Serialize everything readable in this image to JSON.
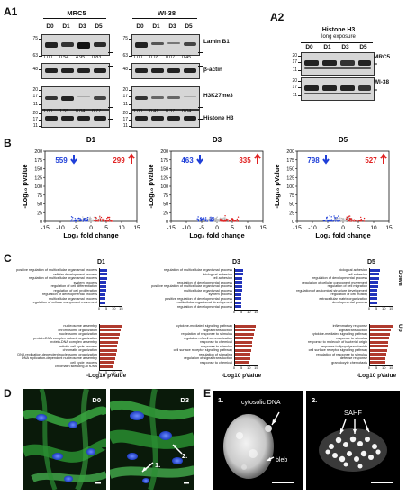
{
  "panels": {
    "a1": "A1",
    "a2": "A2",
    "b": "B",
    "c": "C",
    "d": "D",
    "e": "E"
  },
  "blots": {
    "mrc5_title": "MRC5",
    "wi38_title": "WI-38",
    "lanes": [
      "D0",
      "D1",
      "D3",
      "D5"
    ],
    "mrc5_lamin_quant": [
      "1.00",
      "0.54",
      "4.95",
      "0.83"
    ],
    "wi38_lamin_quant": [
      "1.00",
      "0.18",
      "0.07",
      "0.45"
    ],
    "mrc5_h3k_quant": [
      "1.00",
      "1.55",
      "0.04",
      "0.77"
    ],
    "wi38_h3k_quant": [
      "1.00",
      "0.41",
      "0.37",
      "0.04"
    ],
    "targets": {
      "lamin": "Lamin B1",
      "actin": "β-actin",
      "h3k": "H3K27me3",
      "h3": "Histone H3"
    },
    "mw_top": [
      "75",
      "63",
      "48"
    ],
    "mw_bottom": [
      "20",
      "17",
      "11",
      "20",
      "17",
      "11"
    ],
    "a2_title_line1": "Histone H3",
    "a2_title_line2": "long exposure",
    "a2_mrc5": "MRC5",
    "a2_wi38": "WI-38",
    "a2_mw": [
      "20",
      "17",
      "11",
      "20",
      "17",
      "11"
    ],
    "star": "**"
  },
  "volcano": {
    "titles": [
      "D1",
      "D3",
      "D5"
    ],
    "down_counts": [
      "559",
      "463",
      "798"
    ],
    "up_counts": [
      "299",
      "335",
      "527"
    ],
    "xlabel": "Log₂ fold change",
    "ylabel": "-Log₁₀ pValue",
    "xticks": [
      "-15",
      "-10",
      "-5",
      "0",
      "5",
      "10",
      "15"
    ],
    "yticks": [
      "0",
      "25",
      "50",
      "75",
      "100",
      "125",
      "150",
      "175",
      "200"
    ],
    "colors": {
      "down": "#1f3fd8",
      "up": "#e02020",
      "ns": "#bbbbbb"
    }
  },
  "go": {
    "titles": [
      "D1",
      "D3",
      "D5"
    ],
    "down_label": "Down",
    "up_label": "Up",
    "xlabel": "-Log10 pValue",
    "xticks": [
      "0",
      "5",
      "10",
      "15"
    ],
    "d1_down": [
      "positive regulation of multicellular organismal process",
      "cellular development process",
      "regulation of multicellular organismal process",
      "system process",
      "regulation of cell differentiation",
      "regulation of cell proliferation",
      "regulation of developmental process",
      "multicellular organismal process",
      "regulation of cellular component movement"
    ],
    "d1_up": [
      "nucleosome assembly",
      "chromosome organization",
      "nucleosome organization",
      "protein-DNA complex subunit organization",
      "protein-DNA complex assembly",
      "mitotic cell cycle process",
      "chromatin organization",
      "DNA replication-dependent nucleosome organization",
      "DNA replication-dependent nucleosome assembly",
      "cell cycle process",
      "chromatin silencing at rDNA"
    ],
    "d3_down": [
      "regulation of multicellular organismal process",
      "biological adhesion",
      "cell adhesion",
      "regulation of developmental process",
      "positive regulation of multicellular organismal process",
      "multicellular organismal process",
      "system process",
      "positive regulation of developmental process",
      "multicellular organismal development",
      "regulation of developmental process"
    ],
    "d3_up": [
      "cytokine-mediated signaling pathway",
      "signal transduction",
      "regulation of response to stimulus",
      "regulation of cell communication",
      "response to chemical",
      "response to stimulus",
      "cell surface receptor signaling pathway",
      "regulation of signaling",
      "regulation of signal transduction",
      "response to chemical"
    ],
    "d5_down": [
      "biological adhesion",
      "cell adhesion",
      "regulation of developmental process",
      "regulation of cellular component movement",
      "regulation of cell migration",
      "regulation of anatomical structure development",
      "regulation of cell motility",
      "extracellular matrix organization",
      "developmental process"
    ],
    "d5_up": [
      "inflammatory response",
      "signal transduction",
      "cytokine-mediated signaling pathway",
      "response to stimulus",
      "response to molecule of bacterial origin",
      "response to lipopolysaccharide",
      "cell surface receptor signaling pathway",
      "regulation of response to stimulus",
      "defense response",
      "granulocyte chemotaxis"
    ],
    "d1_down_vals": [
      5.8,
      5.5,
      5.2,
      5.0,
      4.8,
      4.6,
      4.5,
      4.4,
      4.2
    ],
    "d1_up_vals": [
      15.5,
      14.8,
      14.2,
      13.6,
      13.0,
      12.4,
      12.0,
      11.4,
      11.0,
      10.6,
      10.0
    ],
    "d3_down_vals": [
      6.2,
      6.0,
      5.8,
      5.6,
      5.4,
      5.2,
      5.1,
      5.0,
      4.9,
      4.8
    ],
    "d3_up_vals": [
      14.8,
      14.2,
      13.6,
      13.0,
      12.5,
      12.0,
      11.6,
      11.2,
      10.8,
      10.4
    ],
    "d5_down_vals": [
      7.2,
      6.8,
      6.5,
      6.2,
      6.0,
      5.8,
      5.6,
      5.4,
      5.2
    ],
    "d5_up_vals": [
      15.8,
      15.0,
      14.3,
      13.7,
      13.2,
      12.6,
      12.1,
      11.6,
      11.2,
      10.8
    ],
    "down_color": "#2233bb",
    "up_color": "#b03a2e"
  },
  "micro": {
    "d0": "D0",
    "d3": "D3",
    "arrow1": "1.",
    "arrow2": "2.",
    "e1": "1.",
    "e2": "2.",
    "cytosolic": "cytosolic DNA",
    "bleb": "bleb",
    "sahf": "SAHF"
  }
}
